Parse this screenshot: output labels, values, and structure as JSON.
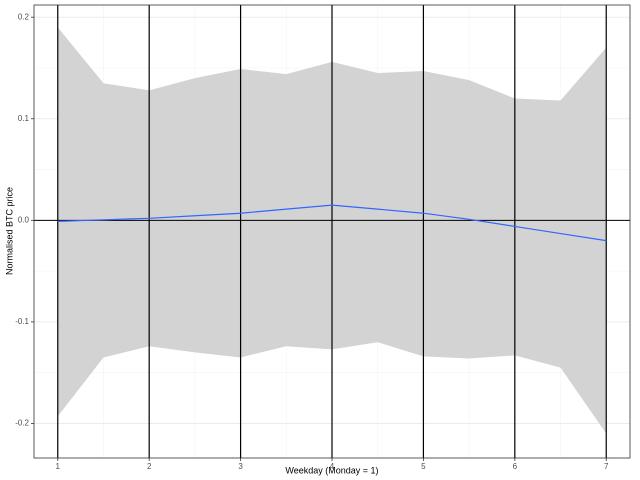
{
  "chart_data": {
    "type": "line",
    "x_label": "Weekday (Monday = 1)",
    "y_label": "Normalised BTC price",
    "x": [
      1,
      1.5,
      2,
      2.5,
      3,
      3.5,
      4,
      4.5,
      5,
      5.5,
      6,
      6.5,
      7
    ],
    "series": [
      {
        "color": "#3366ff",
        "values": [
          -0.001,
          0.0005,
          0.002,
          0.0045,
          0.007,
          0.011,
          0.015,
          0.011,
          0.007,
          0.001,
          -0.006,
          -0.013,
          -0.02
        ]
      }
    ],
    "band": {
      "color": "#d3d3d3",
      "upper": [
        0.19,
        0.135,
        0.128,
        0.14,
        0.149,
        0.144,
        0.156,
        0.145,
        0.147,
        0.138,
        0.12,
        0.118,
        0.17
      ],
      "lower": [
        -0.193,
        -0.135,
        -0.124,
        -0.13,
        -0.135,
        -0.124,
        -0.127,
        -0.12,
        -0.134,
        -0.136,
        -0.133,
        -0.145,
        -0.21
      ]
    },
    "xlim": [
      0.74,
      7.26
    ],
    "ylim": [
      -0.234,
      0.212
    ],
    "xticks": [
      1,
      2,
      3,
      4,
      5,
      6,
      7
    ],
    "yticks": [
      -0.2,
      -0.1,
      {
        "value": 0,
        "label": "0.0"
      },
      0.1,
      0.2
    ],
    "vlines_at_xticks": true,
    "hline": 0,
    "grid": true
  }
}
